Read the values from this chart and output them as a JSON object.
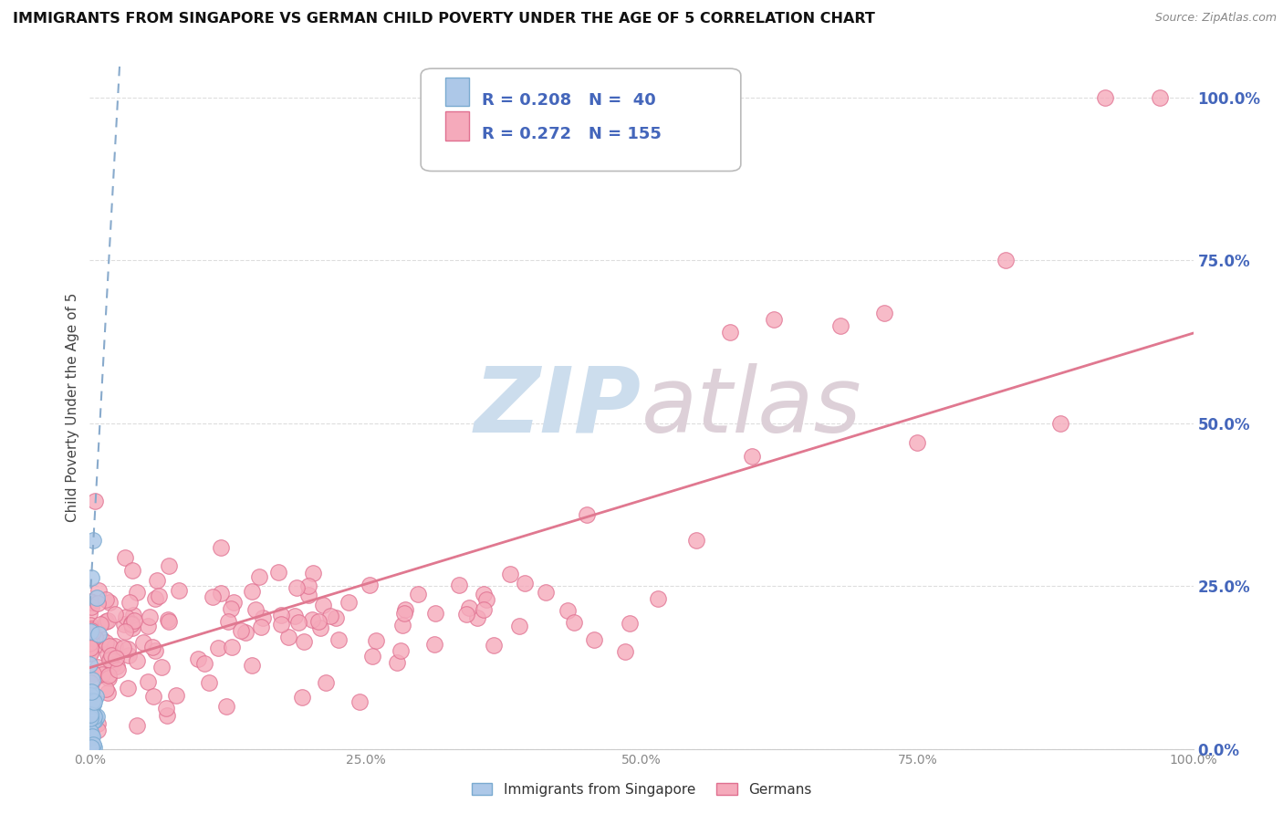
{
  "title": "IMMIGRANTS FROM SINGAPORE VS GERMAN CHILD POVERTY UNDER THE AGE OF 5 CORRELATION CHART",
  "source": "Source: ZipAtlas.com",
  "ylabel": "Child Poverty Under the Age of 5",
  "ytick_labels": [
    "0.0%",
    "25.0%",
    "50.0%",
    "75.0%",
    "100.0%"
  ],
  "ytick_values": [
    0.0,
    0.25,
    0.5,
    0.75,
    1.0
  ],
  "xtick_labels": [
    "0.0%",
    "25.0%",
    "50.0%",
    "75.0%",
    "100.0%"
  ],
  "xtick_values": [
    0.0,
    0.25,
    0.5,
    0.75,
    1.0
  ],
  "xlim": [
    0.0,
    1.0
  ],
  "ylim": [
    0.0,
    1.05
  ],
  "singapore_R": 0.208,
  "singapore_N": 40,
  "german_R": 0.272,
  "german_N": 155,
  "singapore_color": "#adc8e8",
  "singapore_edge": "#7aaad0",
  "singapore_line_color": "#88aacc",
  "german_color": "#f5aabb",
  "german_edge": "#e07090",
  "german_line_color": "#e07890",
  "watermark_zip_color": "#ccdded",
  "watermark_atlas_color": "#ddd0d8",
  "background_color": "#ffffff",
  "grid_color": "#dddddd",
  "legend_label_singapore": "Immigrants from Singapore",
  "legend_label_german": "Germans",
  "tick_color": "#4466bb",
  "title_color": "#111111",
  "source_color": "#888888"
}
